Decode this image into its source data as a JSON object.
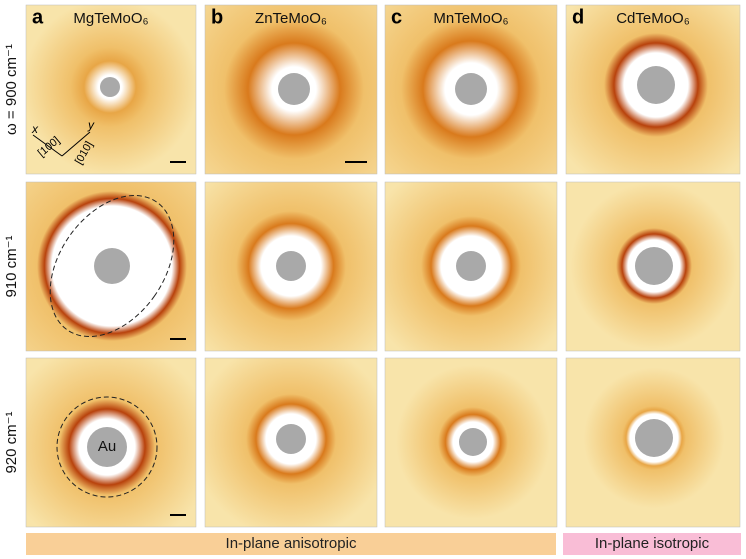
{
  "columns": [
    {
      "letter": "a",
      "material": "MgTeMoO₆"
    },
    {
      "letter": "b",
      "material": "ZnTeMoO₆"
    },
    {
      "letter": "c",
      "material": "MnTeMoO₆"
    },
    {
      "letter": "d",
      "material": "CdTeMoO₆"
    }
  ],
  "rows": [
    "ω = 900 cm⁻¹",
    "910 cm⁻¹",
    "920 cm⁻¹"
  ],
  "annotations": {
    "au": "Au",
    "x": "x",
    "y": "y",
    "dir_x": "[100]",
    "dir_y": "[010]"
  },
  "footer": [
    "In-plane anisotropic",
    "In-plane isotropic"
  ]
}
